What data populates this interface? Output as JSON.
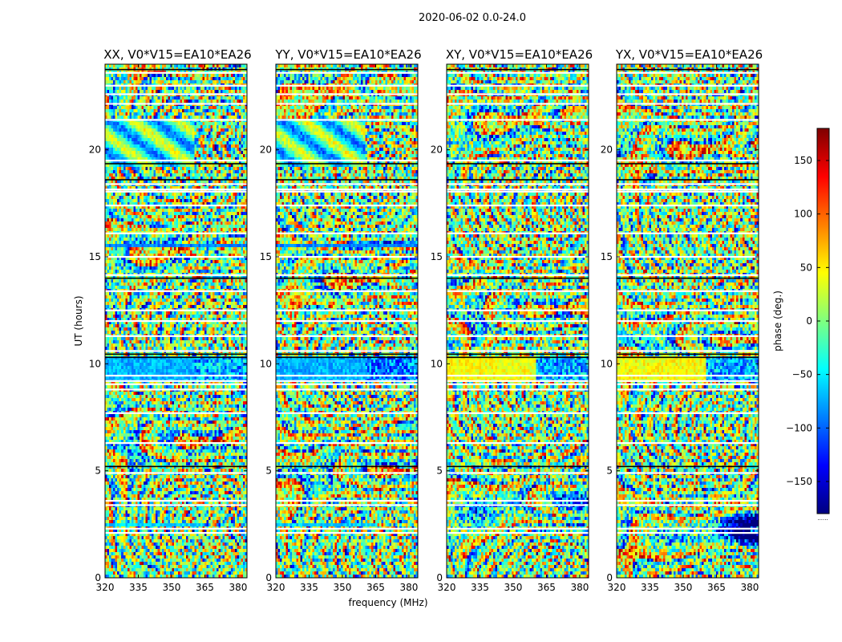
{
  "figure": {
    "suptitle": "2020-06-02 0.0-24.0",
    "xlabel": "frequency (MHz)",
    "ylabel": "UT (hours)",
    "colorbar_label": "phase (deg.)",
    "colorbar_footnote": "......"
  },
  "chart_data": {
    "type": "heatmap",
    "x_range_mhz": [
      320,
      384
    ],
    "y_range_hours": [
      0,
      24
    ],
    "x_ticks": [
      320,
      335,
      350,
      365,
      380
    ],
    "y_ticks": [
      0,
      5,
      10,
      15,
      20
    ],
    "colorbar": {
      "range": [
        -180,
        180
      ],
      "ticks": [
        -150,
        -100,
        -50,
        0,
        50,
        100,
        150
      ],
      "tick_labels": [
        "−150",
        "−100",
        "−50",
        "0",
        "50",
        "100",
        "150"
      ],
      "colormap": [
        "#00007f",
        "#0000ff",
        "#007fff",
        "#00ffff",
        "#7fff7f",
        "#ffff00",
        "#ff7f00",
        "#ff0000",
        "#7f0000"
      ]
    },
    "panels": [
      {
        "title": "XX, V0*V15=EA10*EA26",
        "polarization": "XX"
      },
      {
        "title": "YY, V0*V15=EA10*EA26",
        "polarization": "YY"
      },
      {
        "title": "XY, V0*V15=EA10*EA26",
        "polarization": "XY"
      },
      {
        "title": "YX, V0*V15=EA10*EA26",
        "polarization": "YX"
      }
    ],
    "flagged_rows_hours": [
      2.1,
      2.3,
      3.4,
      3.6,
      4.9,
      6.3,
      7.7,
      8.8,
      9.05,
      9.2,
      9.45,
      10.6,
      11.3,
      12.0,
      12.5,
      13.4,
      14.15,
      15.0,
      16.1,
      17.4,
      18.05,
      18.15,
      18.4,
      19.5,
      21.4,
      22.15,
      22.6,
      23.0,
      23.6
    ],
    "dark_rows_hours": [
      5.2,
      10.45,
      10.3,
      14.0,
      19.35,
      23.75,
      18.6
    ]
  }
}
